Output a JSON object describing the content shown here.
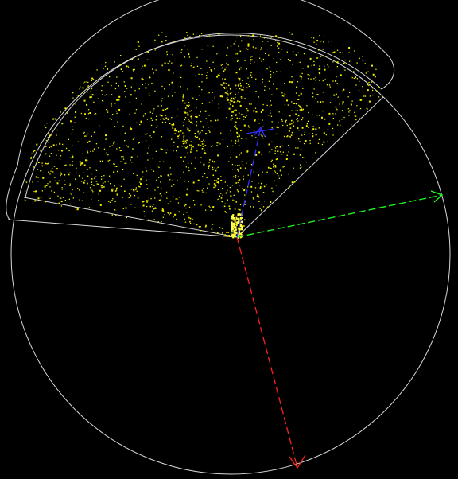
{
  "scene": {
    "background": "#000000",
    "boundary_color": "#d8d8d8",
    "point_cloud": {
      "color": "#f0f000",
      "hotspot_color": "#ffff40"
    },
    "axes": [
      {
        "name": "x-axis",
        "color": "#ff2020",
        "style": "dashed"
      },
      {
        "name": "y-axis",
        "color": "#20ff20",
        "style": "dashed"
      },
      {
        "name": "z-axis",
        "color": "#3030ff",
        "style": "dashed"
      }
    ]
  }
}
